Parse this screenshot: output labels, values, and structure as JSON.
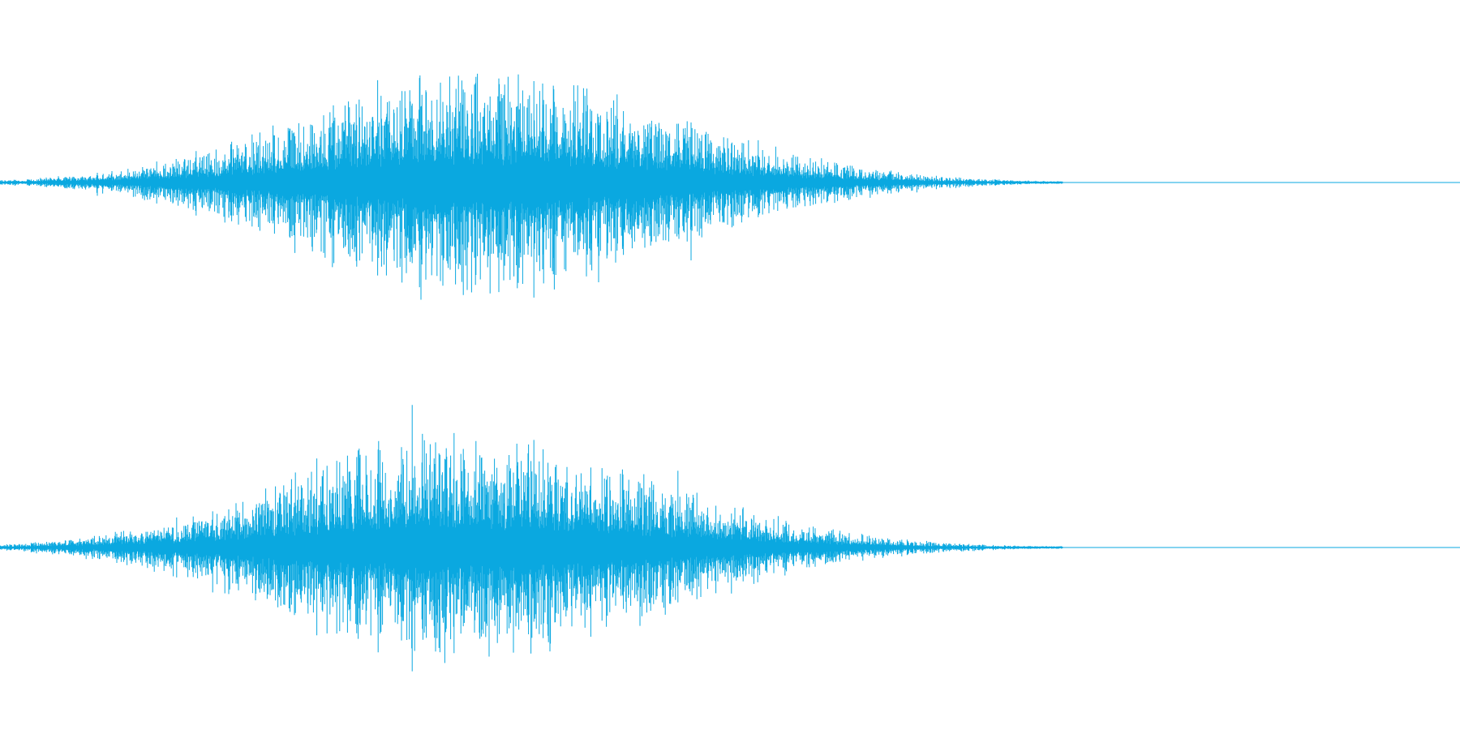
{
  "waveform": {
    "color": "#0aa8e0",
    "channels": [
      {
        "label": "channel-1",
        "peak_fraction": 0.27
      },
      {
        "label": "channel-2",
        "peak_fraction": 0.27
      }
    ]
  }
}
